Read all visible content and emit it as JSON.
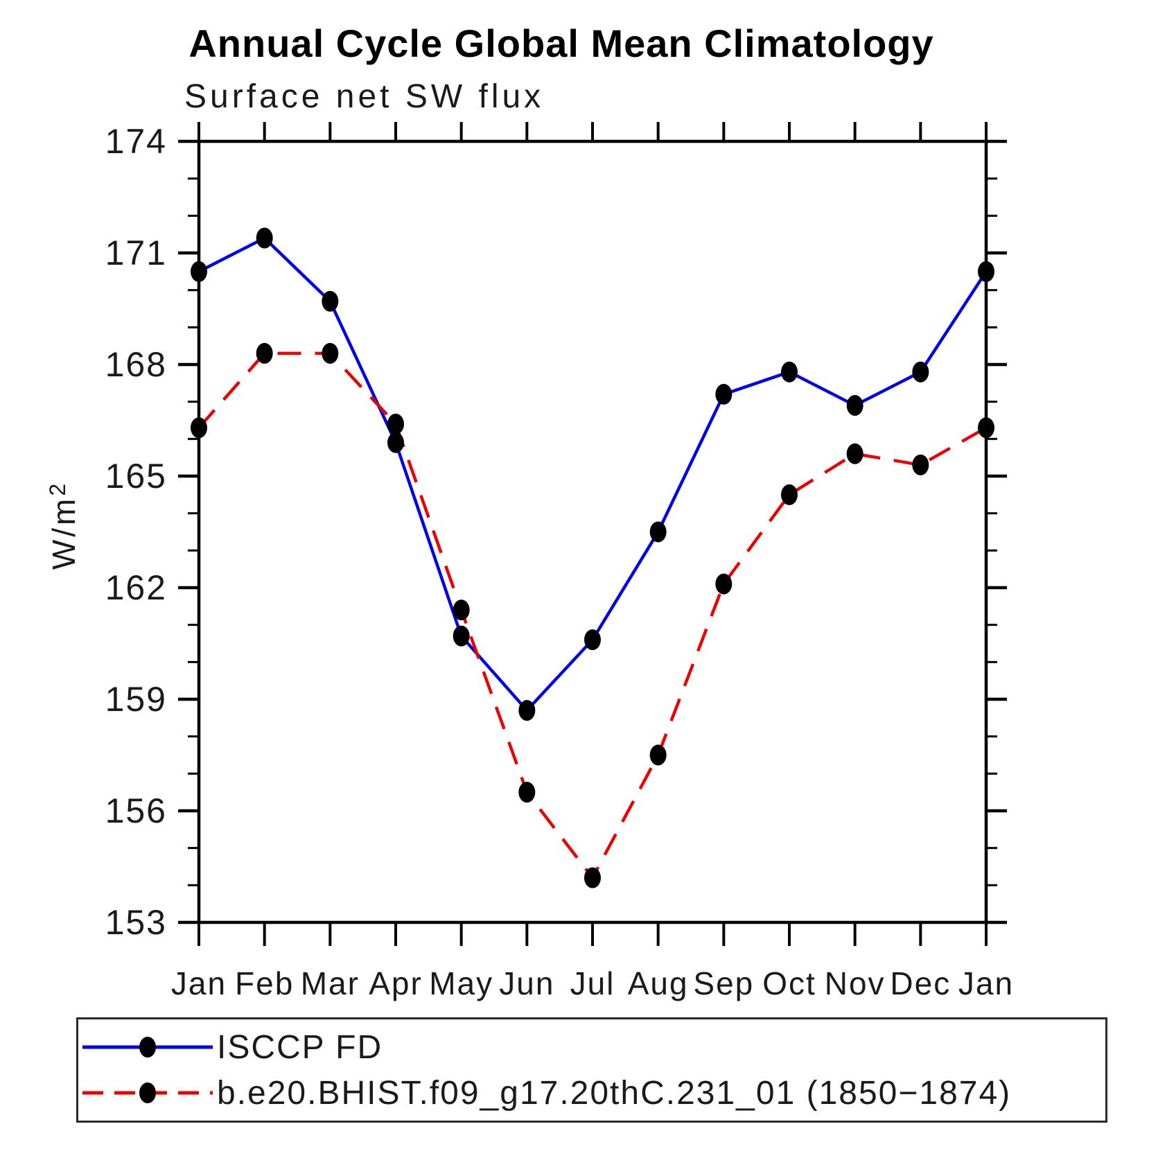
{
  "chart_data": {
    "type": "line",
    "title": "Annual Cycle Global Mean Climatology",
    "subtitle": "Surface net SW flux",
    "ylabel": "W/m²",
    "ylabel_base": "W/m",
    "ylabel_exponent": "2",
    "xlabel": "",
    "categories": [
      "Jan",
      "Feb",
      "Mar",
      "Apr",
      "May",
      "Jun",
      "Jul",
      "Aug",
      "Sep",
      "Oct",
      "Nov",
      "Dec",
      "Jan"
    ],
    "ylim": [
      153,
      174
    ],
    "ytick_major_interval": 3,
    "ytick_minor_interval": 1,
    "grid": "off",
    "legend_position": "bottom",
    "frame_color": "#000000",
    "marker_color": "#000000",
    "series": [
      {
        "name": "ISCCP FD",
        "color": "#0000ee",
        "style": "solid",
        "marker": "filled-circle",
        "values": [
          170.5,
          171.4,
          169.7,
          165.9,
          160.7,
          158.7,
          160.6,
          163.5,
          167.2,
          167.8,
          166.9,
          167.8,
          170.5
        ]
      },
      {
        "name": "b.e20.BHIST.f09_g17.20thC.231_01 (1850−1874)",
        "color": "#ee0000",
        "style": "dashed",
        "marker": "filled-circle",
        "values": [
          166.3,
          168.3,
          168.3,
          166.4,
          161.4,
          156.5,
          154.2,
          157.5,
          162.1,
          164.5,
          165.6,
          165.3,
          166.3
        ]
      }
    ]
  }
}
